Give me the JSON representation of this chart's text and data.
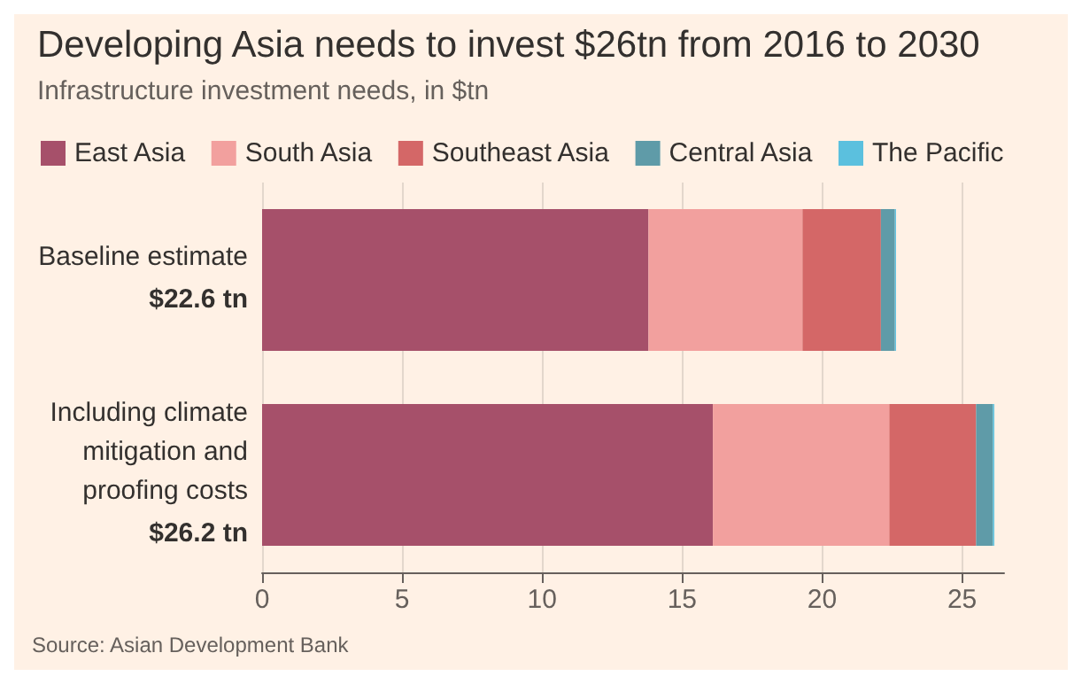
{
  "chart_data": {
    "type": "bar",
    "orientation": "horizontal",
    "stacked": true,
    "title": "Developing Asia needs to invest $26tn from 2016 to 2030",
    "subtitle": "Infrastructure investment needs, in $tn",
    "categories": [
      "Baseline estimate",
      "Including climate mitigation and proofing costs"
    ],
    "series": [
      {
        "name": "East Asia",
        "color": "#a6506a",
        "values": [
          13.8,
          16.1
        ]
      },
      {
        "name": "South Asia",
        "color": "#f2a09e",
        "values": [
          5.5,
          6.3
        ]
      },
      {
        "name": "Southeast Asia",
        "color": "#d46767",
        "values": [
          2.8,
          3.1
        ]
      },
      {
        "name": "Central Asia",
        "color": "#5f9ba8",
        "values": [
          0.5,
          0.6
        ]
      },
      {
        "name": "The Pacific",
        "color": "#5bc0de",
        "values": [
          0.04,
          0.05
        ]
      }
    ],
    "totals": [
      "$22.6 tn",
      "$26.2 tn"
    ],
    "xlim": [
      0,
      26.5
    ],
    "xticks": [
      0,
      5,
      10,
      15,
      20,
      25
    ],
    "grid": "x",
    "legend": "top left",
    "annotations": [
      "Source: Asian Development Bank"
    ]
  }
}
